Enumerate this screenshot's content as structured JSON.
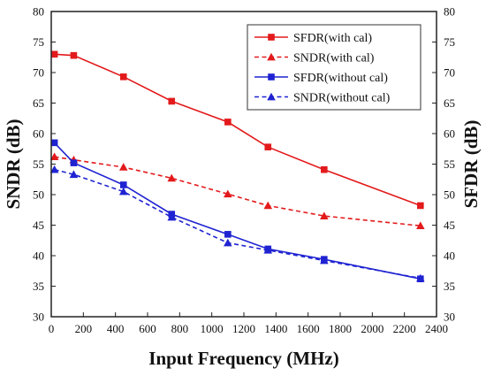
{
  "chart_data": {
    "type": "line",
    "xlabel": "Input Frequency (MHz)",
    "ylabel_left": "SNDR (dB)",
    "ylabel_right": "SFDR (dB)",
    "xlim": [
      0,
      2400
    ],
    "ylim": [
      30,
      80
    ],
    "x_ticks": [
      0,
      200,
      400,
      600,
      800,
      1000,
      1200,
      1400,
      1600,
      1800,
      2000,
      2200,
      2400
    ],
    "y_ticks": [
      30,
      35,
      40,
      45,
      50,
      55,
      60,
      65,
      70,
      75,
      80
    ],
    "grid": false,
    "legend_position": "top-right",
    "series": [
      {
        "name": "SFDR(with cal)",
        "color": "#e31a1c",
        "dash": "solid",
        "marker": "square",
        "x": [
          20,
          140,
          450,
          750,
          1100,
          1350,
          1700,
          2300
        ],
        "y": [
          73.0,
          72.8,
          69.3,
          65.3,
          61.9,
          57.8,
          54.1,
          48.2
        ]
      },
      {
        "name": "SNDR(with cal)",
        "color": "#e31a1c",
        "dash": "dashed",
        "marker": "triangle",
        "x": [
          20,
          140,
          450,
          750,
          1100,
          1350,
          1700,
          2300
        ],
        "y": [
          56.2,
          55.7,
          54.5,
          52.7,
          50.1,
          48.2,
          46.5,
          44.9
        ]
      },
      {
        "name": "SFDR(without cal)",
        "color": "#1f23d1",
        "dash": "solid",
        "marker": "square",
        "x": [
          20,
          140,
          450,
          750,
          1100,
          1350,
          1700,
          2300
        ],
        "y": [
          58.5,
          55.2,
          51.6,
          46.8,
          43.5,
          41.1,
          39.4,
          36.2
        ]
      },
      {
        "name": "SNDR(without cal)",
        "color": "#1f23d1",
        "dash": "dashed",
        "marker": "triangle",
        "x": [
          20,
          140,
          450,
          750,
          1100,
          1350,
          1700,
          2300
        ],
        "y": [
          54.1,
          53.3,
          50.5,
          46.3,
          42.1,
          40.9,
          39.2,
          36.3
        ]
      }
    ]
  }
}
